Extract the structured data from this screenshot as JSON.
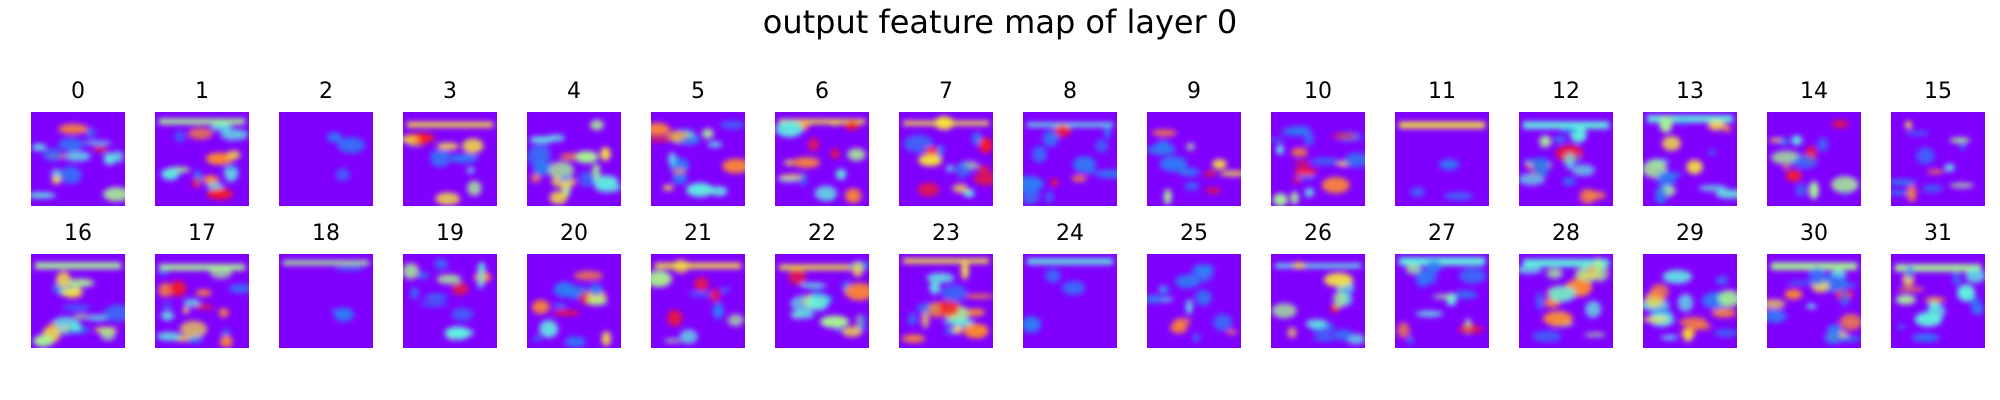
{
  "figure": {
    "title": "output feature map of layer 0",
    "colormap": "rainbow",
    "colors": {
      "background_low": "#8000ff",
      "mid_blue": "#2f7bf5",
      "cyan": "#5ef2e0",
      "green": "#a8f890",
      "yellow": "#f5e33a",
      "orange": "#ff8a2f",
      "red": "#ff1a1a"
    },
    "maps": [
      {
        "label": "0",
        "icon": "heatmap-image"
      },
      {
        "label": "1",
        "icon": "heatmap-image"
      },
      {
        "label": "2",
        "icon": "heatmap-image"
      },
      {
        "label": "3",
        "icon": "heatmap-image"
      },
      {
        "label": "4",
        "icon": "heatmap-image"
      },
      {
        "label": "5",
        "icon": "heatmap-image"
      },
      {
        "label": "6",
        "icon": "heatmap-image"
      },
      {
        "label": "7",
        "icon": "heatmap-image"
      },
      {
        "label": "8",
        "icon": "heatmap-image"
      },
      {
        "label": "9",
        "icon": "heatmap-image"
      },
      {
        "label": "10",
        "icon": "heatmap-image"
      },
      {
        "label": "11",
        "icon": "heatmap-image"
      },
      {
        "label": "12",
        "icon": "heatmap-image"
      },
      {
        "label": "13",
        "icon": "heatmap-image"
      },
      {
        "label": "14",
        "icon": "heatmap-image"
      },
      {
        "label": "15",
        "icon": "heatmap-image"
      },
      {
        "label": "16",
        "icon": "heatmap-image"
      },
      {
        "label": "17",
        "icon": "heatmap-image"
      },
      {
        "label": "18",
        "icon": "heatmap-image"
      },
      {
        "label": "19",
        "icon": "heatmap-image"
      },
      {
        "label": "20",
        "icon": "heatmap-image"
      },
      {
        "label": "21",
        "icon": "heatmap-image"
      },
      {
        "label": "22",
        "icon": "heatmap-image"
      },
      {
        "label": "23",
        "icon": "heatmap-image"
      },
      {
        "label": "24",
        "icon": "heatmap-image"
      },
      {
        "label": "25",
        "icon": "heatmap-image"
      },
      {
        "label": "26",
        "icon": "heatmap-image"
      },
      {
        "label": "27",
        "icon": "heatmap-image"
      },
      {
        "label": "28",
        "icon": "heatmap-image"
      },
      {
        "label": "29",
        "icon": "heatmap-image"
      },
      {
        "label": "30",
        "icon": "heatmap-image"
      },
      {
        "label": "31",
        "icon": "heatmap-image"
      }
    ]
  }
}
